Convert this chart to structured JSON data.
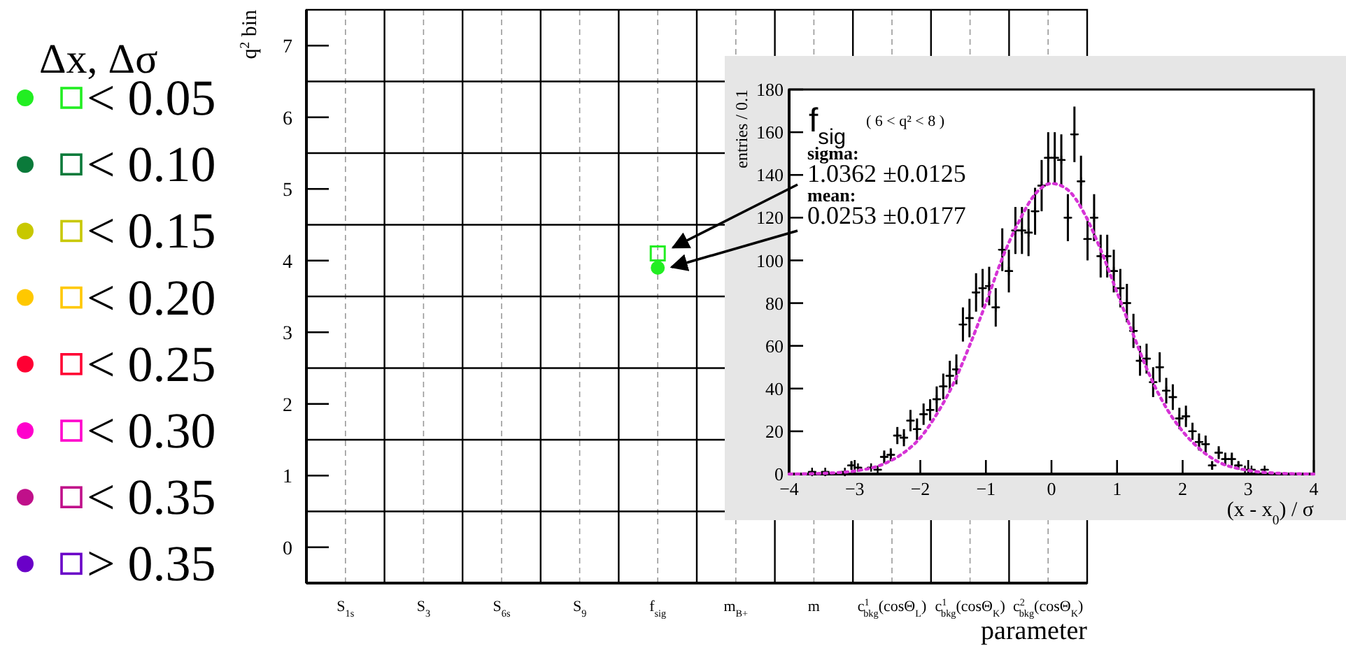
{
  "chart_data": [
    {
      "type": "scatter",
      "ylabel": "q$^{2}$ bin",
      "xlabel": "parameter",
      "legend_title": "Δx, Δσ",
      "legend": "left",
      "grid": true,
      "categories": [
        "S$_{1s}$",
        "S$_{3}$",
        "S$_{6s}$",
        "S$_{9}$",
        "f$_{sig}$",
        "m$_{B+}$",
        "m",
        "c$^{1}$$_{bkg}$(cosΘ$_{L}$)",
        "c$^{1}$$_{bkg}$(cosΘ$_{K}$)",
        "c$^{2}$$_{bkg}$(cosΘ$_{K}$)"
      ],
      "ylim": [
        -0.5,
        7.5
      ],
      "yticks": [
        0,
        1,
        2,
        3,
        4,
        5,
        6,
        7
      ],
      "series": [
        {
          "name": "< 0.05",
          "color": "#22ee22",
          "marker": "circle",
          "values": [
            null,
            null,
            null,
            null,
            3.9,
            null,
            null,
            null,
            null,
            null
          ]
        },
        {
          "color": "#22ee22",
          "marker": "square",
          "values": [
            null,
            null,
            null,
            null,
            4.1,
            null,
            null,
            null,
            null,
            null
          ]
        },
        {
          "name": "< 0.10",
          "color": "#0a7a3a",
          "marker": "circle",
          "values": [
            null,
            null,
            null,
            null,
            null,
            null,
            null,
            null,
            null,
            null
          ]
        },
        {
          "color": "#0a7a3a",
          "marker": "square",
          "values": [
            null,
            null,
            null,
            null,
            null,
            null,
            null,
            null,
            null,
            null
          ]
        },
        {
          "name": "< 0.15",
          "color": "#c8c800",
          "marker": "circle",
          "values": [
            null,
            null,
            null,
            null,
            null,
            null,
            null,
            null,
            null,
            null
          ]
        },
        {
          "color": "#c8c800",
          "marker": "square",
          "values": [
            null,
            null,
            null,
            null,
            null,
            null,
            null,
            null,
            null,
            null
          ]
        },
        {
          "name": "< 0.20",
          "color": "#ffc800",
          "marker": "circle",
          "values": [
            null,
            null,
            null,
            null,
            null,
            null,
            null,
            null,
            null,
            null
          ]
        },
        {
          "color": "#ffc800",
          "marker": "square",
          "values": [
            null,
            null,
            null,
            null,
            null,
            null,
            null,
            null,
            null,
            null
          ]
        },
        {
          "name": "< 0.25",
          "color": "#ff0033",
          "marker": "circle",
          "values": [
            null,
            null,
            null,
            null,
            null,
            null,
            null,
            null,
            null,
            null
          ]
        },
        {
          "color": "#ff0033",
          "marker": "square",
          "values": [
            null,
            null,
            null,
            null,
            null,
            null,
            null,
            null,
            null,
            null
          ]
        },
        {
          "name": "< 0.30",
          "color": "#ff00cc",
          "marker": "circle",
          "values": [
            null,
            null,
            null,
            null,
            null,
            null,
            null,
            null,
            null,
            null
          ]
        },
        {
          "color": "#ff00cc",
          "marker": "square",
          "values": [
            null,
            null,
            null,
            null,
            null,
            null,
            null,
            null,
            null,
            null
          ]
        },
        {
          "name": "< 0.35",
          "color": "#c0108a",
          "marker": "circle",
          "values": [
            null,
            null,
            null,
            null,
            null,
            null,
            null,
            null,
            null,
            null
          ]
        },
        {
          "color": "#c0108a",
          "marker": "square",
          "values": [
            null,
            null,
            null,
            null,
            null,
            null,
            null,
            null,
            null,
            null
          ]
        },
        {
          "name": "> 0.35",
          "color": "#6a00c8",
          "marker": "circle",
          "values": [
            null,
            null,
            null,
            null,
            null,
            null,
            null,
            null,
            null,
            null
          ]
        },
        {
          "color": "#6a00c8",
          "marker": "square",
          "values": [
            null,
            null,
            null,
            null,
            null,
            null,
            null,
            null,
            null,
            null
          ]
        }
      ]
    },
    {
      "type": "scatter",
      "title": "f$_{sig}$",
      "subtitle": "( 6 < q² < 8 )",
      "xlabel": "(x - x$_{0}$) / σ",
      "ylabel": "entries / 0.1",
      "annotations": [
        "sigma:",
        "1.0362 ±0.0125",
        "mean:",
        "0.0253 ±0.0177"
      ],
      "xlim": [
        -4,
        4
      ],
      "xticks": [
        -4,
        -3,
        -2,
        -1,
        0,
        1,
        2,
        3,
        4
      ],
      "ylim": [
        0,
        180
      ],
      "yticks": [
        0,
        20,
        40,
        60,
        80,
        100,
        120,
        140,
        160,
        180
      ],
      "series": [
        {
          "color": "#000000",
          "marker": "cross",
          "x": [
            -3.65,
            -3.45,
            -3.15,
            -3.05,
            -2.95,
            -2.75,
            -2.65,
            -2.55,
            -2.45,
            -2.35,
            -2.25,
            -2.15,
            -2.05,
            -1.95,
            -1.85,
            -1.75,
            -1.65,
            -1.55,
            -1.45,
            -1.35,
            -1.25,
            -1.15,
            -1.05,
            -0.95,
            -0.85,
            -0.75,
            -0.65,
            -0.55,
            -0.45,
            -0.35,
            -0.25,
            -0.15,
            -0.05,
            0.05,
            0.15,
            0.25,
            0.35,
            0.45,
            0.55,
            0.65,
            0.75,
            0.85,
            0.95,
            1.05,
            1.15,
            1.25,
            1.35,
            1.45,
            1.55,
            1.65,
            1.75,
            1.85,
            1.95,
            2.05,
            2.15,
            2.25,
            2.35,
            2.45,
            2.55,
            2.65,
            2.75,
            2.85,
            2.95,
            3.05,
            3.25
          ],
          "values": [
            1,
            1,
            1,
            4,
            3,
            3,
            2,
            8,
            9,
            18,
            17,
            25,
            21,
            28,
            30,
            35,
            41,
            46,
            49,
            70,
            73,
            85,
            87,
            88,
            78,
            105,
            95,
            114,
            114,
            113,
            123,
            135,
            148,
            148,
            147,
            120,
            159,
            137,
            110,
            120,
            102,
            102,
            95,
            87,
            80,
            67,
            53,
            54,
            43,
            50,
            39,
            36,
            26,
            27,
            20,
            15,
            14,
            4,
            10,
            7,
            7,
            4,
            2,
            2,
            2
          ],
          "errors": [
            null,
            null,
            null,
            2,
            null,
            null,
            null,
            3,
            3,
            4,
            4,
            5,
            5,
            5,
            5,
            6,
            6,
            7,
            7,
            8,
            9,
            9,
            9,
            9,
            9,
            10,
            10,
            11,
            11,
            11,
            11,
            12,
            12,
            12,
            12,
            11,
            13,
            12,
            10,
            11,
            10,
            10,
            10,
            9,
            9,
            8,
            7,
            7,
            7,
            7,
            6,
            6,
            5,
            5,
            4,
            4,
            4,
            2,
            3,
            3,
            3,
            2,
            null,
            null,
            null
          ],
          "xerrors": [
            0.05,
            0.05,
            0.05,
            0.05,
            0.05,
            0.05,
            0.05,
            0.05,
            0.05,
            0.05,
            0.05,
            0.05,
            0.05,
            0.05,
            0.05,
            0.05,
            0.05,
            0.05,
            0.05,
            0.05,
            0.05,
            0.05,
            0.05,
            0.05,
            0.05,
            0.05,
            0.05,
            0.05,
            0.05,
            0.05,
            0.05,
            0.05,
            0.05,
            0.05,
            0.05,
            0.05,
            0.05,
            0.05,
            0.05,
            0.05,
            0.05,
            0.05,
            0.05,
            0.05,
            0.05,
            0.05,
            0.05,
            0.05,
            0.05,
            0.05,
            0.05,
            0.05,
            0.05,
            0.05,
            0.05,
            0.05,
            0.05,
            0.05,
            0.05,
            0.05,
            0.05,
            0.05,
            0.05,
            0.05,
            0.05
          ]
        },
        {
          "type": "line",
          "color": "#d633d6",
          "line_style": "dotted",
          "x": [
            -4,
            -3.5,
            -3,
            -2.5,
            -2.25,
            -2,
            -1.75,
            -1.5,
            -1.25,
            -1,
            -0.75,
            -0.5,
            -0.25,
            0,
            0.25,
            0.5,
            0.75,
            1,
            1.25,
            1.5,
            1.75,
            2,
            2.25,
            2.5,
            3,
            3.5,
            4
          ],
          "values": [
            0,
            0.3,
            1.4,
            5.5,
            10,
            17,
            28,
            42,
            60,
            80,
            101,
            118,
            131,
            136,
            133,
            122,
            105,
            85,
            65,
            46,
            31,
            20,
            12,
            6.4,
            1.7,
            0.3,
            0
          ]
        }
      ]
    }
  ]
}
